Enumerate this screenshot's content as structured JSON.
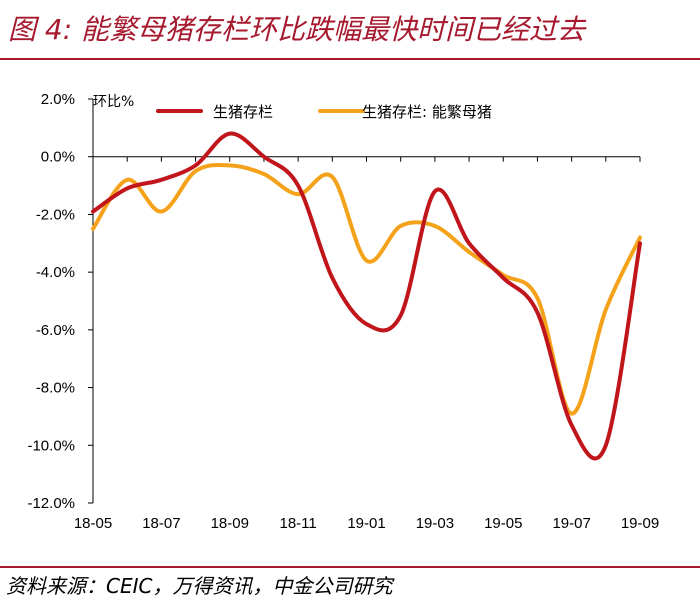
{
  "figure_title": "图 4:  能繁母猪存栏环比跌幅最快时间已经过去",
  "source": "资料来源：CEIC，万得资讯，中金公司研究",
  "colors": {
    "accent": "#a6192e",
    "series_1": "#c0151b",
    "series_2": "#f5a21b"
  },
  "chart_data": {
    "type": "line",
    "ylabel": "环比%",
    "ylim": [
      -12.0,
      2.0
    ],
    "y_ticks": [
      "2.0%",
      "0.0%",
      "-2.0%",
      "-4.0%",
      "-6.0%",
      "-8.0%",
      "-10.0%",
      "-12.0%"
    ],
    "x_ticks": [
      "18-05",
      "18-07",
      "18-09",
      "18-11",
      "19-01",
      "19-03",
      "19-05",
      "19-07",
      "19-09"
    ],
    "x": [
      "18-05",
      "18-06",
      "18-07",
      "18-08",
      "18-09",
      "18-10",
      "18-11",
      "18-12",
      "19-01",
      "19-02",
      "19-03",
      "19-04",
      "19-05",
      "19-06",
      "19-07",
      "19-08",
      "19-09"
    ],
    "legend": "top",
    "series": [
      {
        "name": "生猪存栏",
        "color": "#c0151b",
        "values": [
          -1.9,
          -1.1,
          -0.8,
          -0.3,
          0.8,
          0.0,
          -1.0,
          -4.2,
          -5.8,
          -5.5,
          -1.2,
          -3.0,
          -4.2,
          -5.4,
          -9.3,
          -10.0,
          -3.0
        ]
      },
      {
        "name": "生猪存栏: 能繁母猪",
        "color": "#f5a21b",
        "values": [
          -2.5,
          -0.8,
          -1.9,
          -0.5,
          -0.3,
          -0.6,
          -1.3,
          -0.7,
          -3.6,
          -2.4,
          -2.4,
          -3.3,
          -4.1,
          -4.9,
          -8.9,
          -5.3,
          -2.8
        ]
      }
    ]
  }
}
